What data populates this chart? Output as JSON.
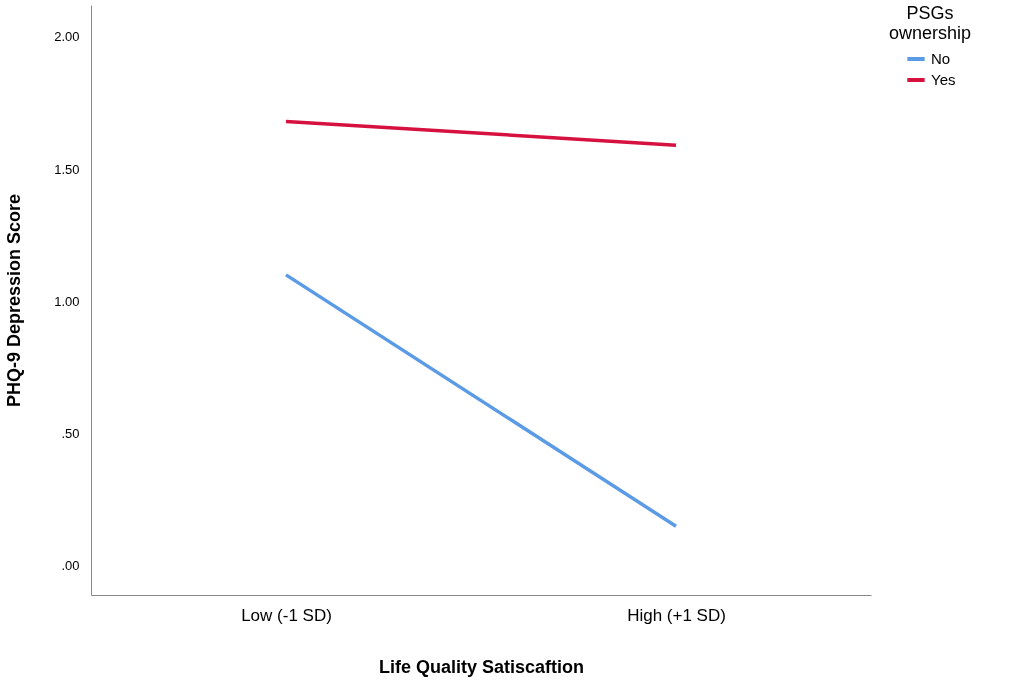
{
  "chart_data": {
    "type": "line",
    "xlabel": "Life Quality Satiscaftion",
    "ylabel": "PHQ-9 Depression Score",
    "legend_title": "PSGs ownership",
    "categories": [
      "Low (-1 SD)",
      "High (+1 SD)"
    ],
    "series": [
      {
        "name": "No",
        "color": "#5b9be6",
        "values": [
          1.1,
          0.15
        ]
      },
      {
        "name": "Yes",
        "color": "#d6113f",
        "values": [
          1.68,
          1.59
        ]
      }
    ],
    "ylim": [
      -0.11,
      2.12
    ],
    "yticks": [
      {
        "value": 0,
        "label": ".00"
      },
      {
        "value": 0.5,
        "label": ".50"
      },
      {
        "value": 1,
        "label": "1.00"
      },
      {
        "value": 1.5,
        "label": "1.50"
      },
      {
        "value": 2,
        "label": "2.00"
      }
    ],
    "grid": false,
    "legend": "top right",
    "marker": "none",
    "line_style": "solid"
  }
}
